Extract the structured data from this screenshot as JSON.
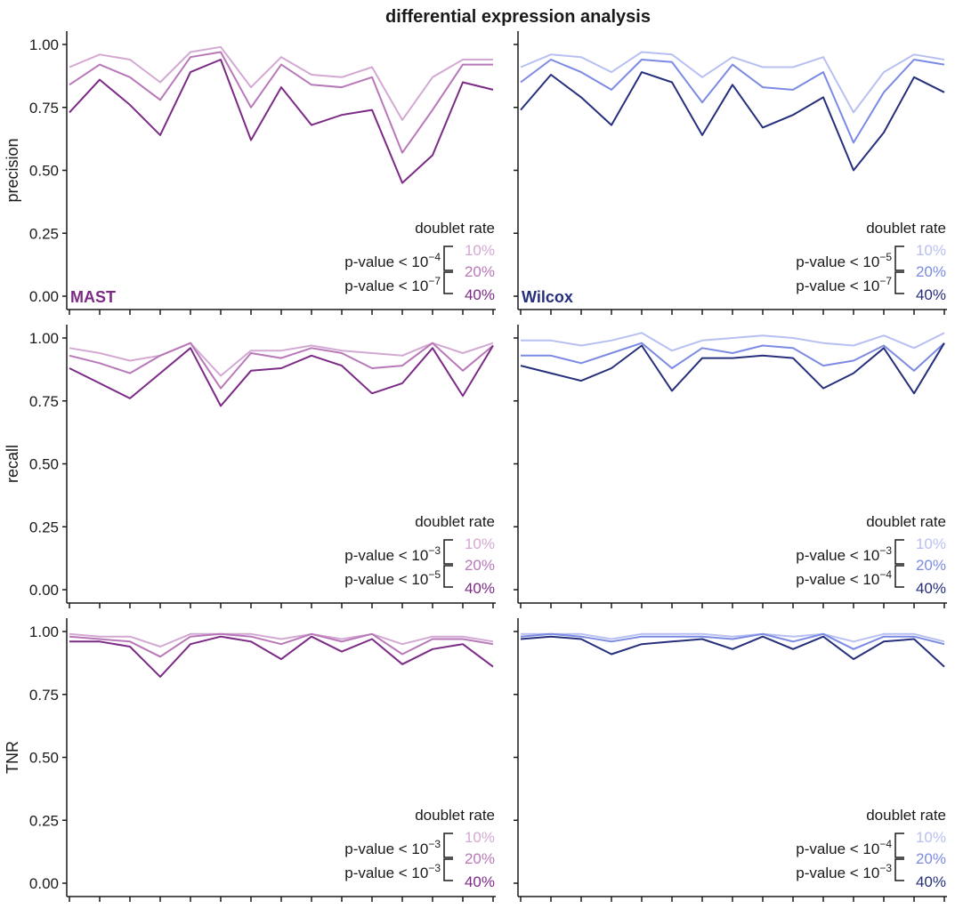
{
  "title": "differential expression analysis",
  "colors": {
    "mast": [
      "#d3a9d3",
      "#b878b8",
      "#7b2a85"
    ],
    "wilcox": [
      "#b8c0f2",
      "#7b8ae3",
      "#262f7c"
    ],
    "mast_label": "#7b2a85",
    "wilcox_label": "#262f7c"
  },
  "legend_title": "doublet rate",
  "legend_pcts": [
    "10%",
    "20%",
    "40%"
  ],
  "rows": [
    {
      "ylabel": "precision"
    },
    {
      "ylabel": "recall"
    },
    {
      "ylabel": "TNR"
    }
  ],
  "chart_data": [
    {
      "type": "line",
      "panel": "precision-mast",
      "method_label": "MAST",
      "palette": "mast",
      "ylabel": "precision",
      "ylim": [
        0,
        1
      ],
      "yticks": [
        "0.00",
        "0.25",
        "0.50",
        "0.75",
        "1.00"
      ],
      "x": [
        1,
        2,
        3,
        4,
        5,
        6,
        7,
        8,
        9,
        10,
        11,
        12,
        13,
        14,
        15
      ],
      "legend": {
        "thr1": "p-value < 10",
        "exp1": "−4",
        "thr2": "p-value < 10",
        "exp2": "−7"
      },
      "series": [
        {
          "name": "10%",
          "values": [
            0.91,
            0.96,
            0.94,
            0.85,
            0.97,
            0.99,
            0.83,
            0.95,
            0.88,
            0.87,
            0.91,
            0.7,
            0.87,
            0.94,
            0.94
          ]
        },
        {
          "name": "20%",
          "values": [
            0.84,
            0.92,
            0.87,
            0.78,
            0.95,
            0.97,
            0.75,
            0.92,
            0.84,
            0.83,
            0.87,
            0.57,
            0.74,
            0.92,
            0.92
          ]
        },
        {
          "name": "40%",
          "values": [
            0.73,
            0.86,
            0.76,
            0.64,
            0.89,
            0.94,
            0.62,
            0.83,
            0.68,
            0.72,
            0.74,
            0.45,
            0.56,
            0.85,
            0.82
          ]
        }
      ]
    },
    {
      "type": "line",
      "panel": "precision-wilcox",
      "method_label": "Wilcox",
      "palette": "wilcox",
      "ylabel": "",
      "ylim": [
        0,
        1
      ],
      "yticks": [],
      "x": [
        1,
        2,
        3,
        4,
        5,
        6,
        7,
        8,
        9,
        10,
        11,
        12,
        13,
        14,
        15
      ],
      "legend": {
        "thr1": "p-value < 10",
        "exp1": "−5",
        "thr2": "p-value < 10",
        "exp2": "−7"
      },
      "series": [
        {
          "name": "10%",
          "values": [
            0.91,
            0.96,
            0.95,
            0.89,
            0.97,
            0.96,
            0.87,
            0.95,
            0.91,
            0.91,
            0.95,
            0.73,
            0.89,
            0.96,
            0.94
          ]
        },
        {
          "name": "20%",
          "values": [
            0.85,
            0.94,
            0.89,
            0.82,
            0.94,
            0.93,
            0.77,
            0.92,
            0.83,
            0.82,
            0.89,
            0.61,
            0.81,
            0.94,
            0.92
          ]
        },
        {
          "name": "40%",
          "values": [
            0.74,
            0.88,
            0.79,
            0.68,
            0.89,
            0.85,
            0.64,
            0.84,
            0.67,
            0.72,
            0.79,
            0.5,
            0.65,
            0.87,
            0.81
          ]
        }
      ]
    },
    {
      "type": "line",
      "panel": "recall-mast",
      "method_label": "",
      "palette": "mast",
      "ylabel": "recall",
      "ylim": [
        0,
        1
      ],
      "yticks": [
        "0.00",
        "0.25",
        "0.50",
        "0.75",
        "1.00"
      ],
      "x": [
        1,
        2,
        3,
        4,
        5,
        6,
        7,
        8,
        9,
        10,
        11,
        12,
        13,
        14,
        15
      ],
      "legend": {
        "thr1": "p-value < 10",
        "exp1": "−3",
        "thr2": "p-value < 10",
        "exp2": "−5"
      },
      "series": [
        {
          "name": "10%",
          "values": [
            0.96,
            0.94,
            0.91,
            0.93,
            0.98,
            0.85,
            0.95,
            0.95,
            0.97,
            0.95,
            0.94,
            0.93,
            0.98,
            0.94,
            0.98
          ]
        },
        {
          "name": "20%",
          "values": [
            0.93,
            0.9,
            0.86,
            0.93,
            0.98,
            0.8,
            0.94,
            0.92,
            0.96,
            0.94,
            0.88,
            0.89,
            0.98,
            0.87,
            0.97
          ]
        },
        {
          "name": "40%",
          "values": [
            0.88,
            0.82,
            0.76,
            0.86,
            0.96,
            0.73,
            0.87,
            0.88,
            0.93,
            0.89,
            0.78,
            0.82,
            0.96,
            0.77,
            0.97
          ]
        }
      ]
    },
    {
      "type": "line",
      "panel": "recall-wilcox",
      "method_label": "",
      "palette": "wilcox",
      "ylabel": "",
      "ylim": [
        0,
        1
      ],
      "yticks": [],
      "x": [
        1,
        2,
        3,
        4,
        5,
        6,
        7,
        8,
        9,
        10,
        11,
        12,
        13,
        14,
        15
      ],
      "legend": {
        "thr1": "p-value < 10",
        "exp1": "−3",
        "thr2": "p-value < 10",
        "exp2": "−4"
      },
      "series": [
        {
          "name": "10%",
          "values": [
            0.99,
            0.99,
            0.97,
            0.99,
            1.02,
            0.95,
            0.99,
            1.0,
            1.01,
            1.0,
            0.98,
            0.97,
            1.01,
            0.96,
            1.02
          ]
        },
        {
          "name": "20%",
          "values": [
            0.93,
            0.93,
            0.9,
            0.94,
            0.98,
            0.88,
            0.96,
            0.94,
            0.97,
            0.96,
            0.89,
            0.91,
            0.97,
            0.87,
            0.98
          ]
        },
        {
          "name": "40%",
          "values": [
            0.89,
            0.86,
            0.83,
            0.88,
            0.97,
            0.79,
            0.92,
            0.92,
            0.93,
            0.92,
            0.8,
            0.86,
            0.96,
            0.78,
            0.98
          ]
        }
      ]
    },
    {
      "type": "line",
      "panel": "tnr-mast",
      "method_label": "",
      "palette": "mast",
      "ylabel": "TNR",
      "ylim": [
        0,
        1
      ],
      "yticks": [
        "0.00",
        "0.25",
        "0.50",
        "0.75",
        "1.00"
      ],
      "x": [
        1,
        2,
        3,
        4,
        5,
        6,
        7,
        8,
        9,
        10,
        11,
        12,
        13,
        14,
        15
      ],
      "legend": {
        "thr1": "p-value < 10",
        "exp1": "−3",
        "thr2": "p-value < 10",
        "exp2": "−3"
      },
      "series": [
        {
          "name": "10%",
          "values": [
            0.99,
            0.98,
            0.98,
            0.94,
            0.99,
            0.99,
            0.99,
            0.97,
            0.99,
            0.97,
            0.99,
            0.95,
            0.98,
            0.98,
            0.96
          ]
        },
        {
          "name": "20%",
          "values": [
            0.98,
            0.97,
            0.96,
            0.9,
            0.98,
            0.99,
            0.98,
            0.95,
            0.99,
            0.96,
            0.99,
            0.91,
            0.97,
            0.97,
            0.95
          ]
        },
        {
          "name": "40%",
          "values": [
            0.96,
            0.96,
            0.94,
            0.82,
            0.95,
            0.98,
            0.96,
            0.89,
            0.98,
            0.92,
            0.97,
            0.87,
            0.93,
            0.95,
            0.86
          ]
        }
      ]
    },
    {
      "type": "line",
      "panel": "tnr-wilcox",
      "method_label": "",
      "palette": "wilcox",
      "ylabel": "",
      "ylim": [
        0,
        1
      ],
      "yticks": [],
      "x": [
        1,
        2,
        3,
        4,
        5,
        6,
        7,
        8,
        9,
        10,
        11,
        12,
        13,
        14,
        15
      ],
      "legend": {
        "thr1": "p-value < 10",
        "exp1": "−4",
        "thr2": "p-value < 10",
        "exp2": "−3"
      },
      "series": [
        {
          "name": "10%",
          "values": [
            0.99,
            0.99,
            0.99,
            0.97,
            0.99,
            0.99,
            0.99,
            0.98,
            0.99,
            0.98,
            0.99,
            0.96,
            0.99,
            0.99,
            0.96
          ]
        },
        {
          "name": "20%",
          "values": [
            0.98,
            0.99,
            0.98,
            0.96,
            0.98,
            0.98,
            0.98,
            0.97,
            0.99,
            0.96,
            0.99,
            0.93,
            0.98,
            0.98,
            0.95
          ]
        },
        {
          "name": "40%",
          "values": [
            0.97,
            0.98,
            0.97,
            0.91,
            0.95,
            0.96,
            0.97,
            0.93,
            0.98,
            0.93,
            0.98,
            0.89,
            0.96,
            0.97,
            0.86
          ]
        }
      ]
    }
  ]
}
